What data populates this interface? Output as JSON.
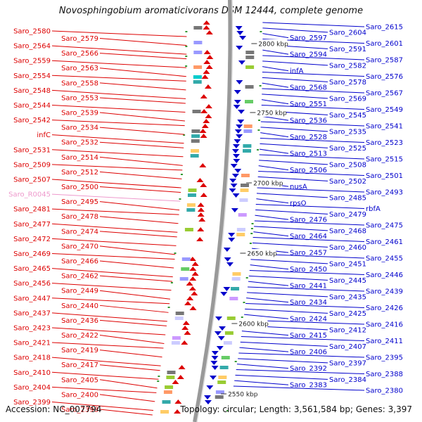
{
  "title": "Novosphingobium aromaticivorans DSM 12444, complete genome",
  "accession_label": "Accession: NC_007794",
  "info_label": "Topology: circular; Length: 3,561,584 bp; Genes: 3,397",
  "colors": {
    "plus": "#dd0000",
    "minus": "#0000cc",
    "rna": "#ee99cc",
    "backbone": "#999999"
  },
  "kbp_labels": [
    "2800 kbp",
    "2750 kbp",
    "2700 kbp",
    "2650 kbp",
    "2600 kbp",
    "2550 kbp"
  ],
  "left_labels": [
    "Saro_2580",
    "Saro_2579",
    "Saro_2564",
    "Saro_2566",
    "Saro_2559",
    "Saro_2563",
    "Saro_2554",
    "Saro_2558",
    "Saro_2548",
    "Saro_2553",
    "Saro_2544",
    "Saro_2539",
    "Saro_2542",
    "Saro_2534",
    "infC",
    "Saro_2532",
    "Saro_2531",
    "Saro_2514",
    "Saro_2509",
    "Saro_2512",
    "Saro_2507",
    "Saro_2500",
    "Saro_R0045",
    "Saro_2495",
    "Saro_2481",
    "Saro_2478",
    "Saro_2477",
    "Saro_2474",
    "Saro_2472",
    "Saro_2470",
    "Saro_2469",
    "Saro_2466",
    "Saro_2465",
    "Saro_2462",
    "Saro_2456",
    "Saro_2449",
    "Saro_2447",
    "Saro_2440",
    "Saro_2437",
    "Saro_2436",
    "Saro_2423",
    "Saro_2422",
    "Saro_2421",
    "Saro_2419",
    "Saro_2418",
    "Saro_2417",
    "Saro_2410",
    "Saro_2405",
    "Saro_2404",
    "Saro_2400",
    "Saro_2399",
    "Saro_2398"
  ],
  "right_labels": [
    "Saro_2615",
    "Saro_2604",
    "Saro_2597",
    "Saro_2601",
    "Saro_2591",
    "Saro_2594",
    "Saro_2587",
    "Saro_2582",
    "infA",
    "Saro_2576",
    "Saro_2578",
    "Saro_2568",
    "Saro_2567",
    "Saro_2569",
    "Saro_2551",
    "Saro_2549",
    "Saro_2545",
    "Saro_2536",
    "Saro_2541",
    "Saro_2535",
    "Saro_2528",
    "Saro_2523",
    "Saro_2525",
    "Saro_2513",
    "Saro_2515",
    "Saro_2508",
    "Saro_2506",
    "Saro_2501",
    "Saro_2502",
    "nusA",
    "Saro_2493",
    "Saro_2485",
    "rpsO",
    "rbfA",
    "Saro_2479",
    "Saro_2476",
    "Saro_2475",
    "Saro_2468",
    "Saro_2464",
    "Saro_2461",
    "Saro_2460",
    "Saro_2457",
    "Saro_2455",
    "Saro_2451",
    "Saro_2450",
    "Saro_2446",
    "Saro_2445",
    "Saro_2441",
    "Saro_2439",
    "Saro_2435",
    "Saro_2434",
    "Saro_2426",
    "Saro_2425",
    "Saro_2424",
    "Saro_2416",
    "Saro_2412",
    "Saro_2415",
    "Saro_2411",
    "Saro_2407",
    "Saro_2406",
    "Saro_2395",
    "Saro_2397",
    "Saro_2392",
    "Saro_2388",
    "Saro_2384",
    "Saro_2383",
    "Saro_2380"
  ]
}
